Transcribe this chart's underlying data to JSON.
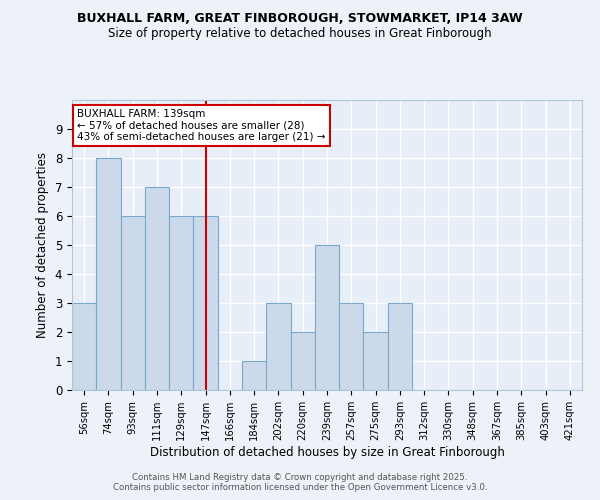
{
  "title1": "BUXHALL FARM, GREAT FINBOROUGH, STOWMARKET, IP14 3AW",
  "title2": "Size of property relative to detached houses in Great Finborough",
  "xlabel": "Distribution of detached houses by size in Great Finborough",
  "ylabel": "Number of detached properties",
  "categories": [
    "56sqm",
    "74sqm",
    "93sqm",
    "111sqm",
    "129sqm",
    "147sqm",
    "166sqm",
    "184sqm",
    "202sqm",
    "220sqm",
    "239sqm",
    "257sqm",
    "275sqm",
    "293sqm",
    "312sqm",
    "330sqm",
    "348sqm",
    "367sqm",
    "385sqm",
    "403sqm",
    "421sqm"
  ],
  "values": [
    3,
    8,
    6,
    7,
    6,
    6,
    0,
    1,
    3,
    2,
    5,
    3,
    2,
    3,
    0,
    0,
    0,
    0,
    0,
    0,
    0
  ],
  "bar_color": "#ccd9ea",
  "bar_edge_color": "#7aa8cc",
  "ylim": [
    0,
    10
  ],
  "yticks": [
    0,
    1,
    2,
    3,
    4,
    5,
    6,
    7,
    8,
    9,
    10
  ],
  "vline_x": 5.0,
  "vline_color": "#cc0000",
  "annotation_title": "BUXHALL FARM: 139sqm",
  "annotation_line1": "← 57% of detached houses are smaller (28)",
  "annotation_line2": "43% of semi-detached houses are larger (21) →",
  "annotation_box_color": "#cc0000",
  "background_color": "#edf2f9",
  "plot_bg_color": "#e8eef7",
  "grid_color": "#ffffff",
  "footer1": "Contains HM Land Registry data © Crown copyright and database right 2025.",
  "footer2": "Contains public sector information licensed under the Open Government Licence v3.0."
}
